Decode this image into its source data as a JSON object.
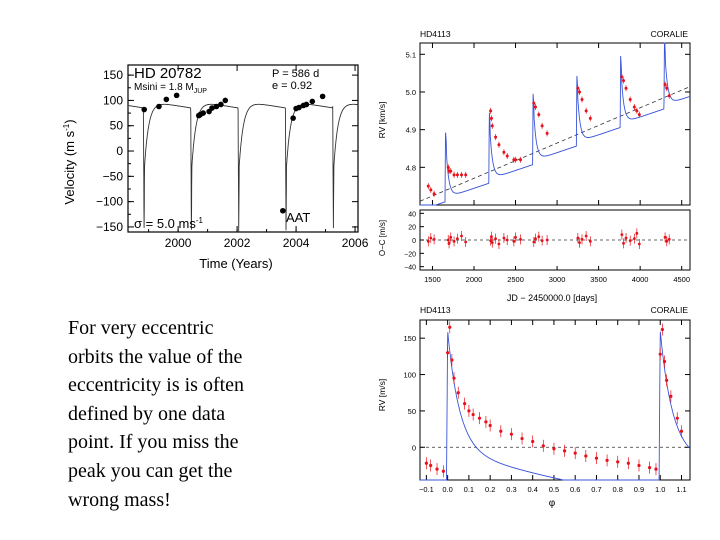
{
  "chart_data": [
    {
      "type": "scatter",
      "star": "HD 20782",
      "msini": "Msini = 1.8 M",
      "msini_sub": "JUP",
      "period": "P = 586 d",
      "ecc": "e = 0.92",
      "sigma": "σ = 5.0 ms",
      "sigma_sup": "-1",
      "telescope": "AAT",
      "xlabel": "Time (Years)",
      "ylabel": "Velocity (m s",
      "ylabel_sup": "-1",
      "ylabel_end": ")",
      "xlim": [
        1998.3,
        2006.1
      ],
      "ylim": [
        -160,
        170
      ],
      "xticks": [
        2000,
        2002,
        2004,
        2006
      ],
      "yticks": [
        150,
        100,
        50,
        0,
        -50,
        -100,
        -150
      ],
      "model": {
        "period_years": 1.605,
        "periastron_epochs": [
          2000.45,
          2002.05,
          2003.65,
          2005.25
        ]
      },
      "x": [
        1998.85,
        1999.35,
        1999.6,
        1999.95,
        2000.7,
        2000.75,
        2000.85,
        2001.05,
        2001.15,
        2001.3,
        2001.45,
        2001.6,
        2003.55,
        2003.9,
        2004.0,
        2004.1,
        2004.25,
        2004.35,
        2004.55,
        2004.9
      ],
      "y": [
        82,
        88,
        102,
        110,
        70,
        72,
        75,
        78,
        85,
        88,
        92,
        100,
        -118,
        65,
        84,
        86,
        90,
        92,
        98,
        108
      ]
    },
    {
      "type": "line",
      "star": "HD4113",
      "instrument": "CORALIE",
      "ylabel": "RV [km/s]",
      "resid_ylabel": "O−C [m/s]",
      "xlabel": "JD − 2450000.0 [days]",
      "xlim": [
        1350,
        4600
      ],
      "ylim": [
        4.7,
        5.13
      ],
      "yticks": [
        4.8,
        4.9,
        5.0,
        5.1
      ],
      "resid_ylim": [
        -45,
        45
      ],
      "resid_yticks": [
        40,
        20,
        0,
        -20,
        -40
      ],
      "xticks": [
        1500,
        2000,
        2500,
        3000,
        3500,
        4000,
        4500
      ],
      "trend": {
        "slope_per_day": 9.36e-05,
        "value_at_1350": 4.71
      },
      "orbit": {
        "period_days": 527,
        "periastron_epochs": [
          1657,
          2184,
          2711,
          3238,
          3765,
          4292
        ],
        "k_kms": 0.12
      },
      "x": [
        1450,
        1480,
        1520,
        1690,
        1700,
        1720,
        1760,
        1800,
        1850,
        1900,
        2200,
        2210,
        2220,
        2260,
        2300,
        2360,
        2400,
        2480,
        2500,
        2560,
        2720,
        2740,
        2780,
        2820,
        2880,
        3250,
        3270,
        3300,
        3350,
        3400,
        3780,
        3800,
        3830,
        3880,
        3930,
        3960,
        3990,
        4300,
        4320,
        4350
      ],
      "y": [
        4.75,
        4.74,
        4.73,
        4.8,
        4.79,
        4.79,
        4.78,
        4.78,
        4.78,
        4.78,
        4.95,
        4.93,
        4.91,
        4.88,
        4.86,
        4.84,
        4.83,
        4.82,
        4.82,
        4.82,
        4.97,
        4.96,
        4.94,
        4.91,
        4.89,
        5.01,
        5.0,
        4.98,
        4.95,
        4.93,
        5.04,
        5.03,
        5.01,
        4.98,
        4.96,
        4.95,
        4.94,
        5.02,
        5.01,
        4.99
      ],
      "resid": [
        -2,
        3,
        1,
        0,
        -5,
        4,
        -2,
        2,
        6,
        -3,
        -1,
        5,
        -4,
        2,
        -6,
        3,
        0,
        -2,
        4,
        1,
        -3,
        2,
        5,
        -1,
        0,
        3,
        -4,
        1,
        6,
        -2,
        8,
        -5,
        3,
        -1,
        2,
        10,
        -6,
        4,
        -2,
        1
      ]
    },
    {
      "type": "line",
      "star": "HD4113",
      "instrument": "CORALIE",
      "ylabel": "RV [m/s]",
      "xlabel": "φ",
      "xlim": [
        -0.13,
        1.14
      ],
      "ylim": [
        -45,
        175
      ],
      "yticks": [
        150,
        100,
        50,
        0
      ],
      "xticks": [
        -0.1,
        0.0,
        0.1,
        0.2,
        0.3,
        0.4,
        0.5,
        0.6,
        0.7,
        0.8,
        0.9,
        1.0,
        1.1
      ],
      "phase": [
        -0.1,
        -0.08,
        -0.05,
        -0.02,
        0.0,
        0.01,
        0.02,
        0.03,
        0.05,
        0.08,
        0.1,
        0.12,
        0.15,
        0.18,
        0.2,
        0.25,
        0.3,
        0.35,
        0.4,
        0.45,
        0.5,
        0.55,
        0.6,
        0.65,
        0.7,
        0.75,
        0.8,
        0.85,
        0.9,
        0.95,
        0.98,
        1.0,
        1.01,
        1.02,
        1.03,
        1.05,
        1.08,
        1.1
      ],
      "rv": [
        -22,
        -25,
        -30,
        -33,
        130,
        165,
        120,
        95,
        75,
        60,
        50,
        45,
        40,
        35,
        30,
        22,
        18,
        12,
        8,
        2,
        -2,
        -5,
        -8,
        -12,
        -15,
        -18,
        -20,
        -22,
        -25,
        -28,
        -30,
        128,
        162,
        118,
        92,
        70,
        40,
        22
      ]
    }
  ],
  "caption": {
    "text": "For very eccentric\norbits the value of the\neccentricity is  is often\ndefined by one data\npoint. If you miss the\npeak you can get the\nwrong mass!"
  },
  "colors": {
    "data_points": "#000000",
    "coralie_points": "#e8101a",
    "model_line_blue": "#3a55d8",
    "axis": "#000000",
    "dashed": "#333333"
  }
}
